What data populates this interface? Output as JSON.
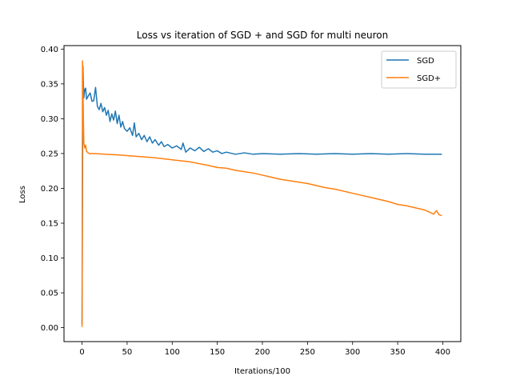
{
  "chart_data": {
    "type": "line",
    "title": "Loss vs iteration of SGD + and SGD for multi neuron",
    "xlabel": "Iterations/100",
    "ylabel": "Loss",
    "xlim": [
      -20,
      420
    ],
    "ylim": [
      -0.02,
      0.405
    ],
    "xticks": [
      0,
      50,
      100,
      150,
      200,
      250,
      300,
      350,
      400
    ],
    "yticks": [
      0.0,
      0.05,
      0.1,
      0.15,
      0.2,
      0.25,
      0.3,
      0.35,
      0.4
    ],
    "ytick_labels": [
      "0.00",
      "0.05",
      "0.10",
      "0.15",
      "0.20",
      "0.25",
      "0.30",
      "0.35",
      "0.40"
    ],
    "grid": false,
    "legend_position": "top-right",
    "series": [
      {
        "name": "SGD",
        "color": "#1f77b4",
        "points": [
          [
            0,
            0.005
          ],
          [
            1,
            0.375
          ],
          [
            2,
            0.33
          ],
          [
            3,
            0.342
          ],
          [
            4,
            0.344
          ],
          [
            5,
            0.328
          ],
          [
            7,
            0.333
          ],
          [
            9,
            0.337
          ],
          [
            11,
            0.325
          ],
          [
            13,
            0.326
          ],
          [
            15,
            0.345
          ],
          [
            17,
            0.318
          ],
          [
            19,
            0.313
          ],
          [
            21,
            0.322
          ],
          [
            23,
            0.31
          ],
          [
            25,
            0.316
          ],
          [
            27,
            0.305
          ],
          [
            29,
            0.312
          ],
          [
            31,
            0.296
          ],
          [
            33,
            0.307
          ],
          [
            35,
            0.298
          ],
          [
            37,
            0.311
          ],
          [
            39,
            0.293
          ],
          [
            41,
            0.305
          ],
          [
            43,
            0.288
          ],
          [
            45,
            0.296
          ],
          [
            47,
            0.286
          ],
          [
            50,
            0.282
          ],
          [
            53,
            0.287
          ],
          [
            56,
            0.276
          ],
          [
            58,
            0.294
          ],
          [
            60,
            0.274
          ],
          [
            63,
            0.279
          ],
          [
            66,
            0.27
          ],
          [
            69,
            0.276
          ],
          [
            72,
            0.267
          ],
          [
            75,
            0.274
          ],
          [
            78,
            0.265
          ],
          [
            81,
            0.27
          ],
          [
            85,
            0.262
          ],
          [
            88,
            0.267
          ],
          [
            91,
            0.26
          ],
          [
            95,
            0.263
          ],
          [
            100,
            0.258
          ],
          [
            105,
            0.261
          ],
          [
            110,
            0.256
          ],
          [
            112,
            0.265
          ],
          [
            115,
            0.252
          ],
          [
            120,
            0.258
          ],
          [
            125,
            0.254
          ],
          [
            130,
            0.259
          ],
          [
            135,
            0.253
          ],
          [
            140,
            0.257
          ],
          [
            145,
            0.252
          ],
          [
            150,
            0.254
          ],
          [
            155,
            0.25
          ],
          [
            160,
            0.252
          ],
          [
            170,
            0.249
          ],
          [
            180,
            0.251
          ],
          [
            190,
            0.249
          ],
          [
            200,
            0.25
          ],
          [
            220,
            0.249
          ],
          [
            240,
            0.25
          ],
          [
            260,
            0.249
          ],
          [
            280,
            0.25
          ],
          [
            300,
            0.249
          ],
          [
            320,
            0.25
          ],
          [
            340,
            0.249
          ],
          [
            360,
            0.25
          ],
          [
            380,
            0.249
          ],
          [
            399,
            0.249
          ]
        ]
      },
      {
        "name": "SGD+",
        "color": "#ff7f0e",
        "points": [
          [
            0,
            0.001
          ],
          [
            0.5,
            0.383
          ],
          [
            1,
            0.36
          ],
          [
            1.5,
            0.3
          ],
          [
            2,
            0.265
          ],
          [
            3,
            0.258
          ],
          [
            4,
            0.262
          ],
          [
            5,
            0.253
          ],
          [
            8,
            0.25
          ],
          [
            15,
            0.25
          ],
          [
            25,
            0.249
          ],
          [
            40,
            0.248
          ],
          [
            60,
            0.246
          ],
          [
            80,
            0.244
          ],
          [
            100,
            0.241
          ],
          [
            120,
            0.238
          ],
          [
            140,
            0.233
          ],
          [
            150,
            0.23
          ],
          [
            160,
            0.229
          ],
          [
            170,
            0.226
          ],
          [
            180,
            0.224
          ],
          [
            190,
            0.222
          ],
          [
            200,
            0.219
          ],
          [
            210,
            0.216
          ],
          [
            220,
            0.213
          ],
          [
            230,
            0.211
          ],
          [
            240,
            0.209
          ],
          [
            250,
            0.207
          ],
          [
            260,
            0.204
          ],
          [
            270,
            0.201
          ],
          [
            280,
            0.199
          ],
          [
            290,
            0.196
          ],
          [
            300,
            0.193
          ],
          [
            310,
            0.19
          ],
          [
            320,
            0.187
          ],
          [
            330,
            0.184
          ],
          [
            340,
            0.181
          ],
          [
            350,
            0.177
          ],
          [
            360,
            0.175
          ],
          [
            370,
            0.172
          ],
          [
            380,
            0.169
          ],
          [
            385,
            0.166
          ],
          [
            390,
            0.163
          ],
          [
            393,
            0.168
          ],
          [
            396,
            0.162
          ],
          [
            399,
            0.161
          ]
        ]
      }
    ]
  }
}
